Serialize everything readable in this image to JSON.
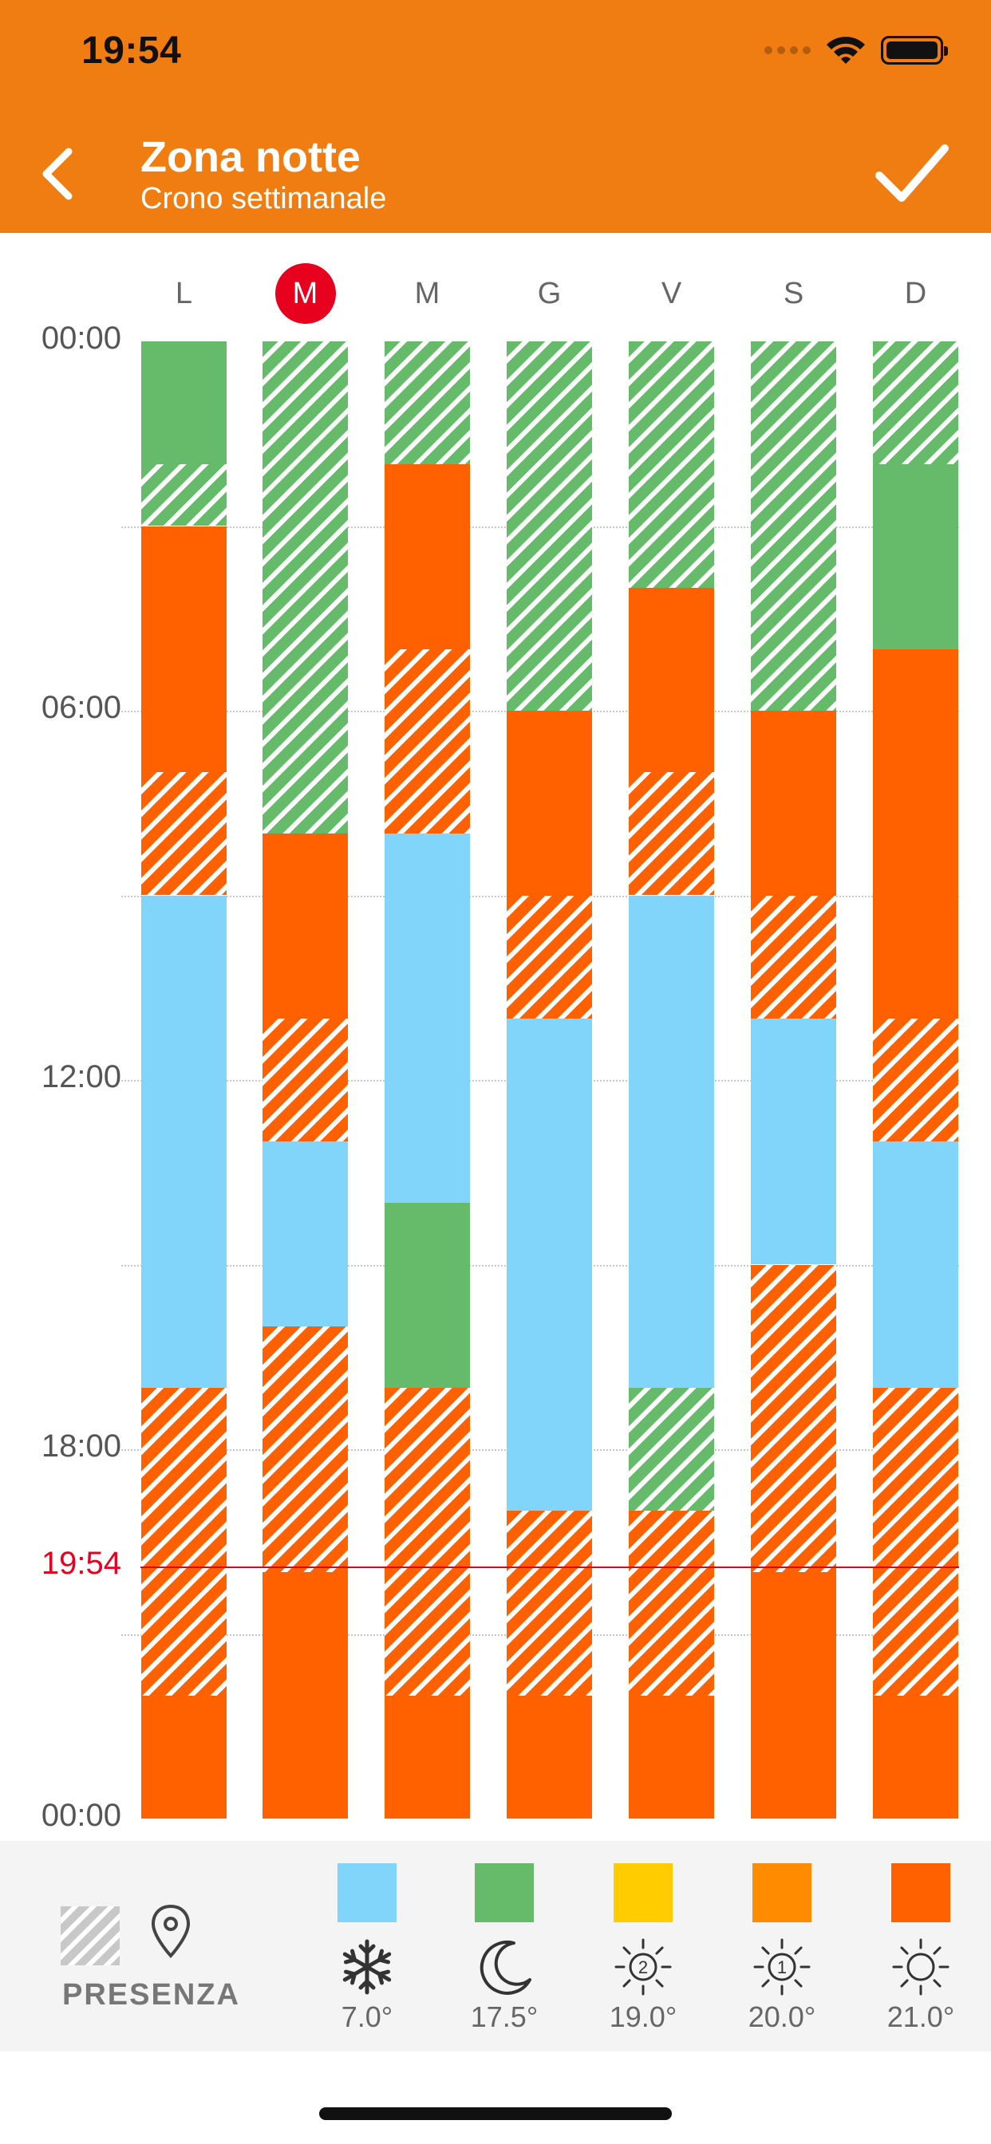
{
  "status_bar": {
    "time": "19:54"
  },
  "header": {
    "title": "Zona notte",
    "subtitle": "Crono settimanale"
  },
  "colors": {
    "header": "#F07D12",
    "antifreeze": "#81D4FA",
    "economy": "#66BB6A",
    "comfort1": "#FFCC00",
    "comfort2": "#FF8C00",
    "comfort3": "#FF6000",
    "now_line": "#E8001F"
  },
  "days": [
    {
      "label": "L",
      "today": false
    },
    {
      "label": "M",
      "today": true
    },
    {
      "label": "M",
      "today": false
    },
    {
      "label": "G",
      "today": false
    },
    {
      "label": "V",
      "today": false
    },
    {
      "label": "S",
      "today": false
    },
    {
      "label": "D",
      "today": false
    }
  ],
  "time_labels": [
    "00:00",
    "06:00",
    "12:00",
    "18:00",
    "00:00"
  ],
  "now_label": "19:54",
  "now_hour": 19.9,
  "schedule": [
    [
      {
        "start": 0,
        "end": 2,
        "mode": "economy",
        "presence": false
      },
      {
        "start": 2,
        "end": 3,
        "mode": "economy",
        "presence": true
      },
      {
        "start": 3,
        "end": 7,
        "mode": "comfort3",
        "presence": false
      },
      {
        "start": 7,
        "end": 9,
        "mode": "comfort3",
        "presence": true
      },
      {
        "start": 9,
        "end": 17,
        "mode": "antifreeze",
        "presence": false
      },
      {
        "start": 17,
        "end": 22,
        "mode": "comfort3",
        "presence": true
      },
      {
        "start": 22,
        "end": 24,
        "mode": "comfort3",
        "presence": false
      }
    ],
    [
      {
        "start": 0,
        "end": 8,
        "mode": "economy",
        "presence": true
      },
      {
        "start": 8,
        "end": 11,
        "mode": "comfort3",
        "presence": false
      },
      {
        "start": 11,
        "end": 13,
        "mode": "comfort3",
        "presence": true
      },
      {
        "start": 13,
        "end": 16,
        "mode": "antifreeze",
        "presence": false
      },
      {
        "start": 16,
        "end": 20,
        "mode": "comfort3",
        "presence": true
      },
      {
        "start": 20,
        "end": 24,
        "mode": "comfort3",
        "presence": false
      }
    ],
    [
      {
        "start": 0,
        "end": 2,
        "mode": "economy",
        "presence": true
      },
      {
        "start": 2,
        "end": 5,
        "mode": "comfort3",
        "presence": false
      },
      {
        "start": 5,
        "end": 8,
        "mode": "comfort3",
        "presence": true
      },
      {
        "start": 8,
        "end": 14,
        "mode": "antifreeze",
        "presence": false
      },
      {
        "start": 14,
        "end": 17,
        "mode": "economy",
        "presence": false
      },
      {
        "start": 17,
        "end": 22,
        "mode": "comfort3",
        "presence": true
      },
      {
        "start": 22,
        "end": 24,
        "mode": "comfort3",
        "presence": false
      }
    ],
    [
      {
        "start": 0,
        "end": 6,
        "mode": "economy",
        "presence": true
      },
      {
        "start": 6,
        "end": 9,
        "mode": "comfort3",
        "presence": false
      },
      {
        "start": 9,
        "end": 11,
        "mode": "comfort3",
        "presence": true
      },
      {
        "start": 11,
        "end": 19,
        "mode": "antifreeze",
        "presence": false
      },
      {
        "start": 19,
        "end": 22,
        "mode": "comfort3",
        "presence": true
      },
      {
        "start": 22,
        "end": 24,
        "mode": "comfort3",
        "presence": false
      }
    ],
    [
      {
        "start": 0,
        "end": 4,
        "mode": "economy",
        "presence": true
      },
      {
        "start": 4,
        "end": 7,
        "mode": "comfort3",
        "presence": false
      },
      {
        "start": 7,
        "end": 9,
        "mode": "comfort3",
        "presence": true
      },
      {
        "start": 9,
        "end": 17,
        "mode": "antifreeze",
        "presence": false
      },
      {
        "start": 17,
        "end": 19,
        "mode": "economy",
        "presence": true
      },
      {
        "start": 19,
        "end": 22,
        "mode": "comfort3",
        "presence": true
      },
      {
        "start": 22,
        "end": 24,
        "mode": "comfort3",
        "presence": false
      }
    ],
    [
      {
        "start": 0,
        "end": 6,
        "mode": "economy",
        "presence": true
      },
      {
        "start": 6,
        "end": 9,
        "mode": "comfort3",
        "presence": false
      },
      {
        "start": 9,
        "end": 11,
        "mode": "comfort3",
        "presence": true
      },
      {
        "start": 11,
        "end": 15,
        "mode": "antifreeze",
        "presence": false
      },
      {
        "start": 15,
        "end": 20,
        "mode": "comfort3",
        "presence": true
      },
      {
        "start": 20,
        "end": 24,
        "mode": "comfort3",
        "presence": false
      }
    ],
    [
      {
        "start": 0,
        "end": 2,
        "mode": "economy",
        "presence": true
      },
      {
        "start": 2,
        "end": 5,
        "mode": "economy",
        "presence": false
      },
      {
        "start": 5,
        "end": 11,
        "mode": "comfort3",
        "presence": false
      },
      {
        "start": 11,
        "end": 13,
        "mode": "comfort3",
        "presence": true
      },
      {
        "start": 13,
        "end": 17,
        "mode": "antifreeze",
        "presence": false
      },
      {
        "start": 17,
        "end": 22,
        "mode": "comfort3",
        "presence": true
      },
      {
        "start": 22,
        "end": 24,
        "mode": "comfort3",
        "presence": false
      }
    ]
  ],
  "legend": {
    "presence_label": "PRESENZA",
    "items": [
      {
        "mode": "antifreeze",
        "icon": "snowflake-icon",
        "value": "7.0°"
      },
      {
        "mode": "economy",
        "icon": "moon-icon",
        "value": "17.5°"
      },
      {
        "mode": "comfort1",
        "icon": "sun-2-icon",
        "value": "19.0°",
        "badge": "2"
      },
      {
        "mode": "comfort2",
        "icon": "sun-1-icon",
        "value": "20.0°",
        "badge": "1"
      },
      {
        "mode": "comfort3",
        "icon": "sun-icon",
        "value": "21.0°"
      }
    ]
  }
}
